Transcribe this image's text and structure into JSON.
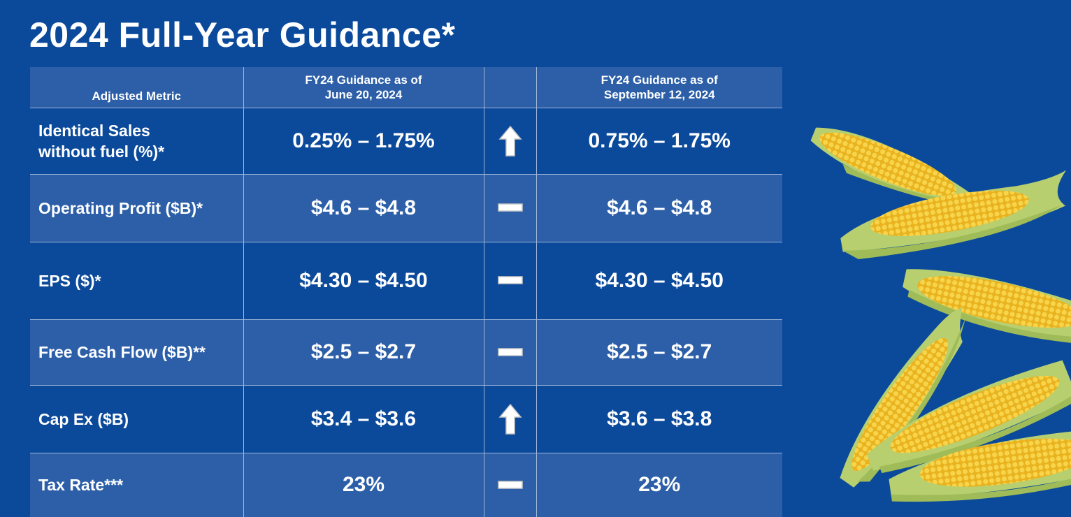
{
  "title": "2024 Full-Year Guidance*",
  "table": {
    "headers": {
      "metric": "Adjusted Metric",
      "june_line1": "FY24 Guidance as of",
      "june_line2": "June 20, 2024",
      "sept_line1": "FY24 Guidance as of",
      "sept_line2": "September 12, 2024"
    },
    "rows": [
      {
        "metric_line1": "Identical Sales",
        "metric_line2": "without fuel (%)*",
        "june": "0.25% – 1.75%",
        "change": "up-arrow-icon",
        "sept": "0.75% – 1.75%"
      },
      {
        "metric_line1": "Operating Profit ($B)*",
        "june": "$4.6 – $4.8",
        "change": "dash-icon",
        "sept": "$4.6 – $4.8"
      },
      {
        "metric_line1": "EPS ($)*",
        "june": "$4.30 – $4.50",
        "change": "dash-icon",
        "sept": "$4.30 – $4.50"
      },
      {
        "metric_line1": "Free Cash Flow ($B)**",
        "june": "$2.5 – $2.7",
        "change": "dash-icon",
        "sept": "$2.5 – $2.7"
      },
      {
        "metric_line1": "Cap Ex ($B)",
        "june": "$3.4 – $3.6",
        "change": "up-arrow-icon",
        "sept": "$3.6 – $3.8"
      },
      {
        "metric_line1": "Tax Rate***",
        "june": "23%",
        "change": "dash-icon",
        "sept": "23%"
      }
    ]
  },
  "decoration": {
    "image_subject": "corn-cobs-image"
  },
  "colors": {
    "background": "#0b4a9b",
    "row_light": "#2c5fa8",
    "text": "#ffffff",
    "corn_kernel": "#f3c530",
    "husk": "#b8cf70"
  }
}
